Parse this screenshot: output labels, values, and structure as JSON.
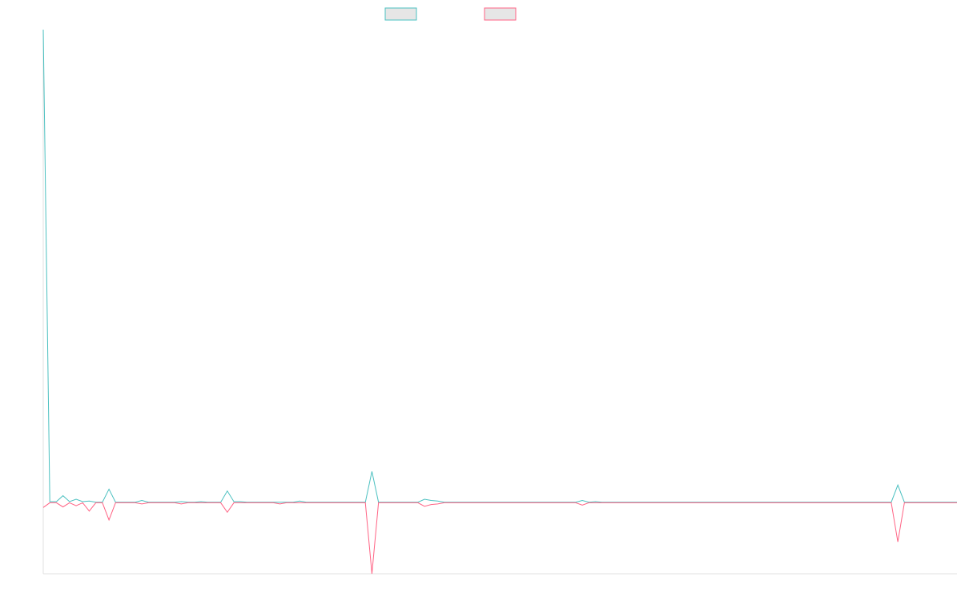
{
  "chart_data": {
    "type": "line",
    "title": "",
    "xlabel": "",
    "ylabel": "",
    "grid": false,
    "legend_position": "top-center",
    "ylim": [
      -12,
      80
    ],
    "x_count": 140,
    "series": [
      {
        "color": "#4bc0c0",
        "values": [
          80,
          0.2,
          0.2,
          1.2,
          0.2,
          0.6,
          0.2,
          0.3,
          0.1,
          0.1,
          2.3,
          0.1,
          0.1,
          0.1,
          0.1,
          0.4,
          0.1,
          0.1,
          0.1,
          0.1,
          0.1,
          0.2,
          0.1,
          0.1,
          0.2,
          0.1,
          0.1,
          0.1,
          2.0,
          0.2,
          0.2,
          0.1,
          0.1,
          0.1,
          0.1,
          0.1,
          0.1,
          0.1,
          0.1,
          0.3,
          0.1,
          0.1,
          0.1,
          0.1,
          0.1,
          0.1,
          0.1,
          0.1,
          0.1,
          0.1,
          5.3,
          0.1,
          0.1,
          0.1,
          0.1,
          0.1,
          0.1,
          0.1,
          0.6,
          0.4,
          0.3,
          0.1,
          0.1,
          0.1,
          0.1,
          0.1,
          0.1,
          0.1,
          0.1,
          0.1,
          0.1,
          0.1,
          0.1,
          0.1,
          0.1,
          0.1,
          0.1,
          0.1,
          0.1,
          0.1,
          0.1,
          0.1,
          0.4,
          0.1,
          0.2,
          0.1,
          0.1,
          0.1,
          0.1,
          0.1,
          0.1,
          0.1,
          0.1,
          0.1,
          0.1,
          0.1,
          0.1,
          0.1,
          0.1,
          0.1,
          0.1,
          0.1,
          0.1,
          0.1,
          0.1,
          0.1,
          0.1,
          0.1,
          0.1,
          0.1,
          0.1,
          0.1,
          0.1,
          0.1,
          0.1,
          0.1,
          0.1,
          0.1,
          0.1,
          0.1,
          0.1,
          0.1,
          0.1,
          0.1,
          0.1,
          0.1,
          0.1,
          0.1,
          0.1,
          0.1,
          3.0,
          0.1,
          0.1,
          0.1,
          0.1,
          0.1,
          0.1,
          0.1,
          0.1,
          0.1
        ]
      },
      {
        "color": "#ff6384",
        "values": [
          -0.8,
          0.0,
          0.0,
          -0.7,
          0.0,
          -0.5,
          0.0,
          -1.4,
          0.0,
          0.0,
          -2.9,
          0.0,
          0.0,
          0.0,
          0.0,
          -0.2,
          0.0,
          0.0,
          0.0,
          0.0,
          0.0,
          -0.2,
          0.0,
          0.0,
          0.0,
          0.0,
          0.0,
          0.0,
          -1.6,
          0.0,
          0.0,
          0.0,
          0.0,
          0.0,
          0.0,
          0.0,
          -0.2,
          0.0,
          0.0,
          0.0,
          0.0,
          0.0,
          0.0,
          0.0,
          0.0,
          0.0,
          0.0,
          0.0,
          0.0,
          0.0,
          -12.0,
          0.0,
          0.0,
          0.0,
          0.0,
          0.0,
          0.0,
          0.0,
          -0.6,
          -0.3,
          -0.2,
          0.0,
          0.0,
          0.0,
          0.0,
          0.0,
          0.0,
          0.0,
          0.0,
          0.0,
          0.0,
          0.0,
          0.0,
          0.0,
          0.0,
          0.0,
          0.0,
          0.0,
          0.0,
          0.0,
          0.0,
          0.0,
          -0.4,
          0.0,
          0.0,
          0.0,
          0.0,
          0.0,
          0.0,
          0.0,
          0.0,
          0.0,
          0.0,
          0.0,
          0.0,
          0.0,
          0.0,
          0.0,
          0.0,
          0.0,
          0.0,
          0.0,
          0.0,
          0.0,
          0.0,
          0.0,
          0.0,
          0.0,
          0.0,
          0.0,
          0.0,
          0.0,
          0.0,
          0.0,
          0.0,
          0.0,
          0.0,
          0.0,
          0.0,
          0.0,
          0.0,
          0.0,
          0.0,
          0.0,
          0.0,
          0.0,
          0.0,
          0.0,
          0.0,
          0.0,
          -6.6,
          0.0,
          0.0,
          0.0,
          0.0,
          0.0,
          0.0,
          0.0,
          0.0,
          0.0
        ]
      }
    ]
  }
}
